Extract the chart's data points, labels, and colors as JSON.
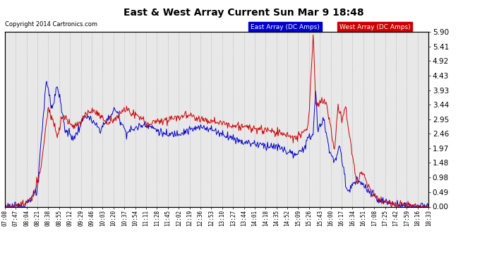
{
  "title": "East & West Array Current Sun Mar 9 18:48",
  "copyright": "Copyright 2014 Cartronics.com",
  "legend_east": "East Array (DC Amps)",
  "legend_west": "West Array (DC Amps)",
  "east_color": "#0000cc",
  "west_color": "#cc0000",
  "legend_east_bg": "#0000cc",
  "legend_west_bg": "#cc0000",
  "background_color": "#ffffff",
  "plot_bg_color": "#e8e8e8",
  "yticks": [
    0.0,
    0.49,
    0.98,
    1.48,
    1.97,
    2.46,
    2.95,
    3.44,
    3.93,
    4.43,
    4.92,
    5.41,
    5.9
  ],
  "ylim": [
    0.0,
    5.9
  ],
  "x_labels": [
    "07:08",
    "07:47",
    "08:04",
    "08:21",
    "08:38",
    "08:55",
    "09:12",
    "09:29",
    "09:46",
    "10:03",
    "10:20",
    "10:37",
    "10:54",
    "11:11",
    "11:28",
    "11:45",
    "12:02",
    "12:19",
    "12:36",
    "12:53",
    "13:10",
    "13:27",
    "13:44",
    "14:01",
    "14:18",
    "14:35",
    "14:52",
    "15:09",
    "15:26",
    "15:43",
    "16:00",
    "16:17",
    "16:34",
    "16:51",
    "17:08",
    "17:25",
    "17:42",
    "17:59",
    "18:16",
    "18:33"
  ]
}
